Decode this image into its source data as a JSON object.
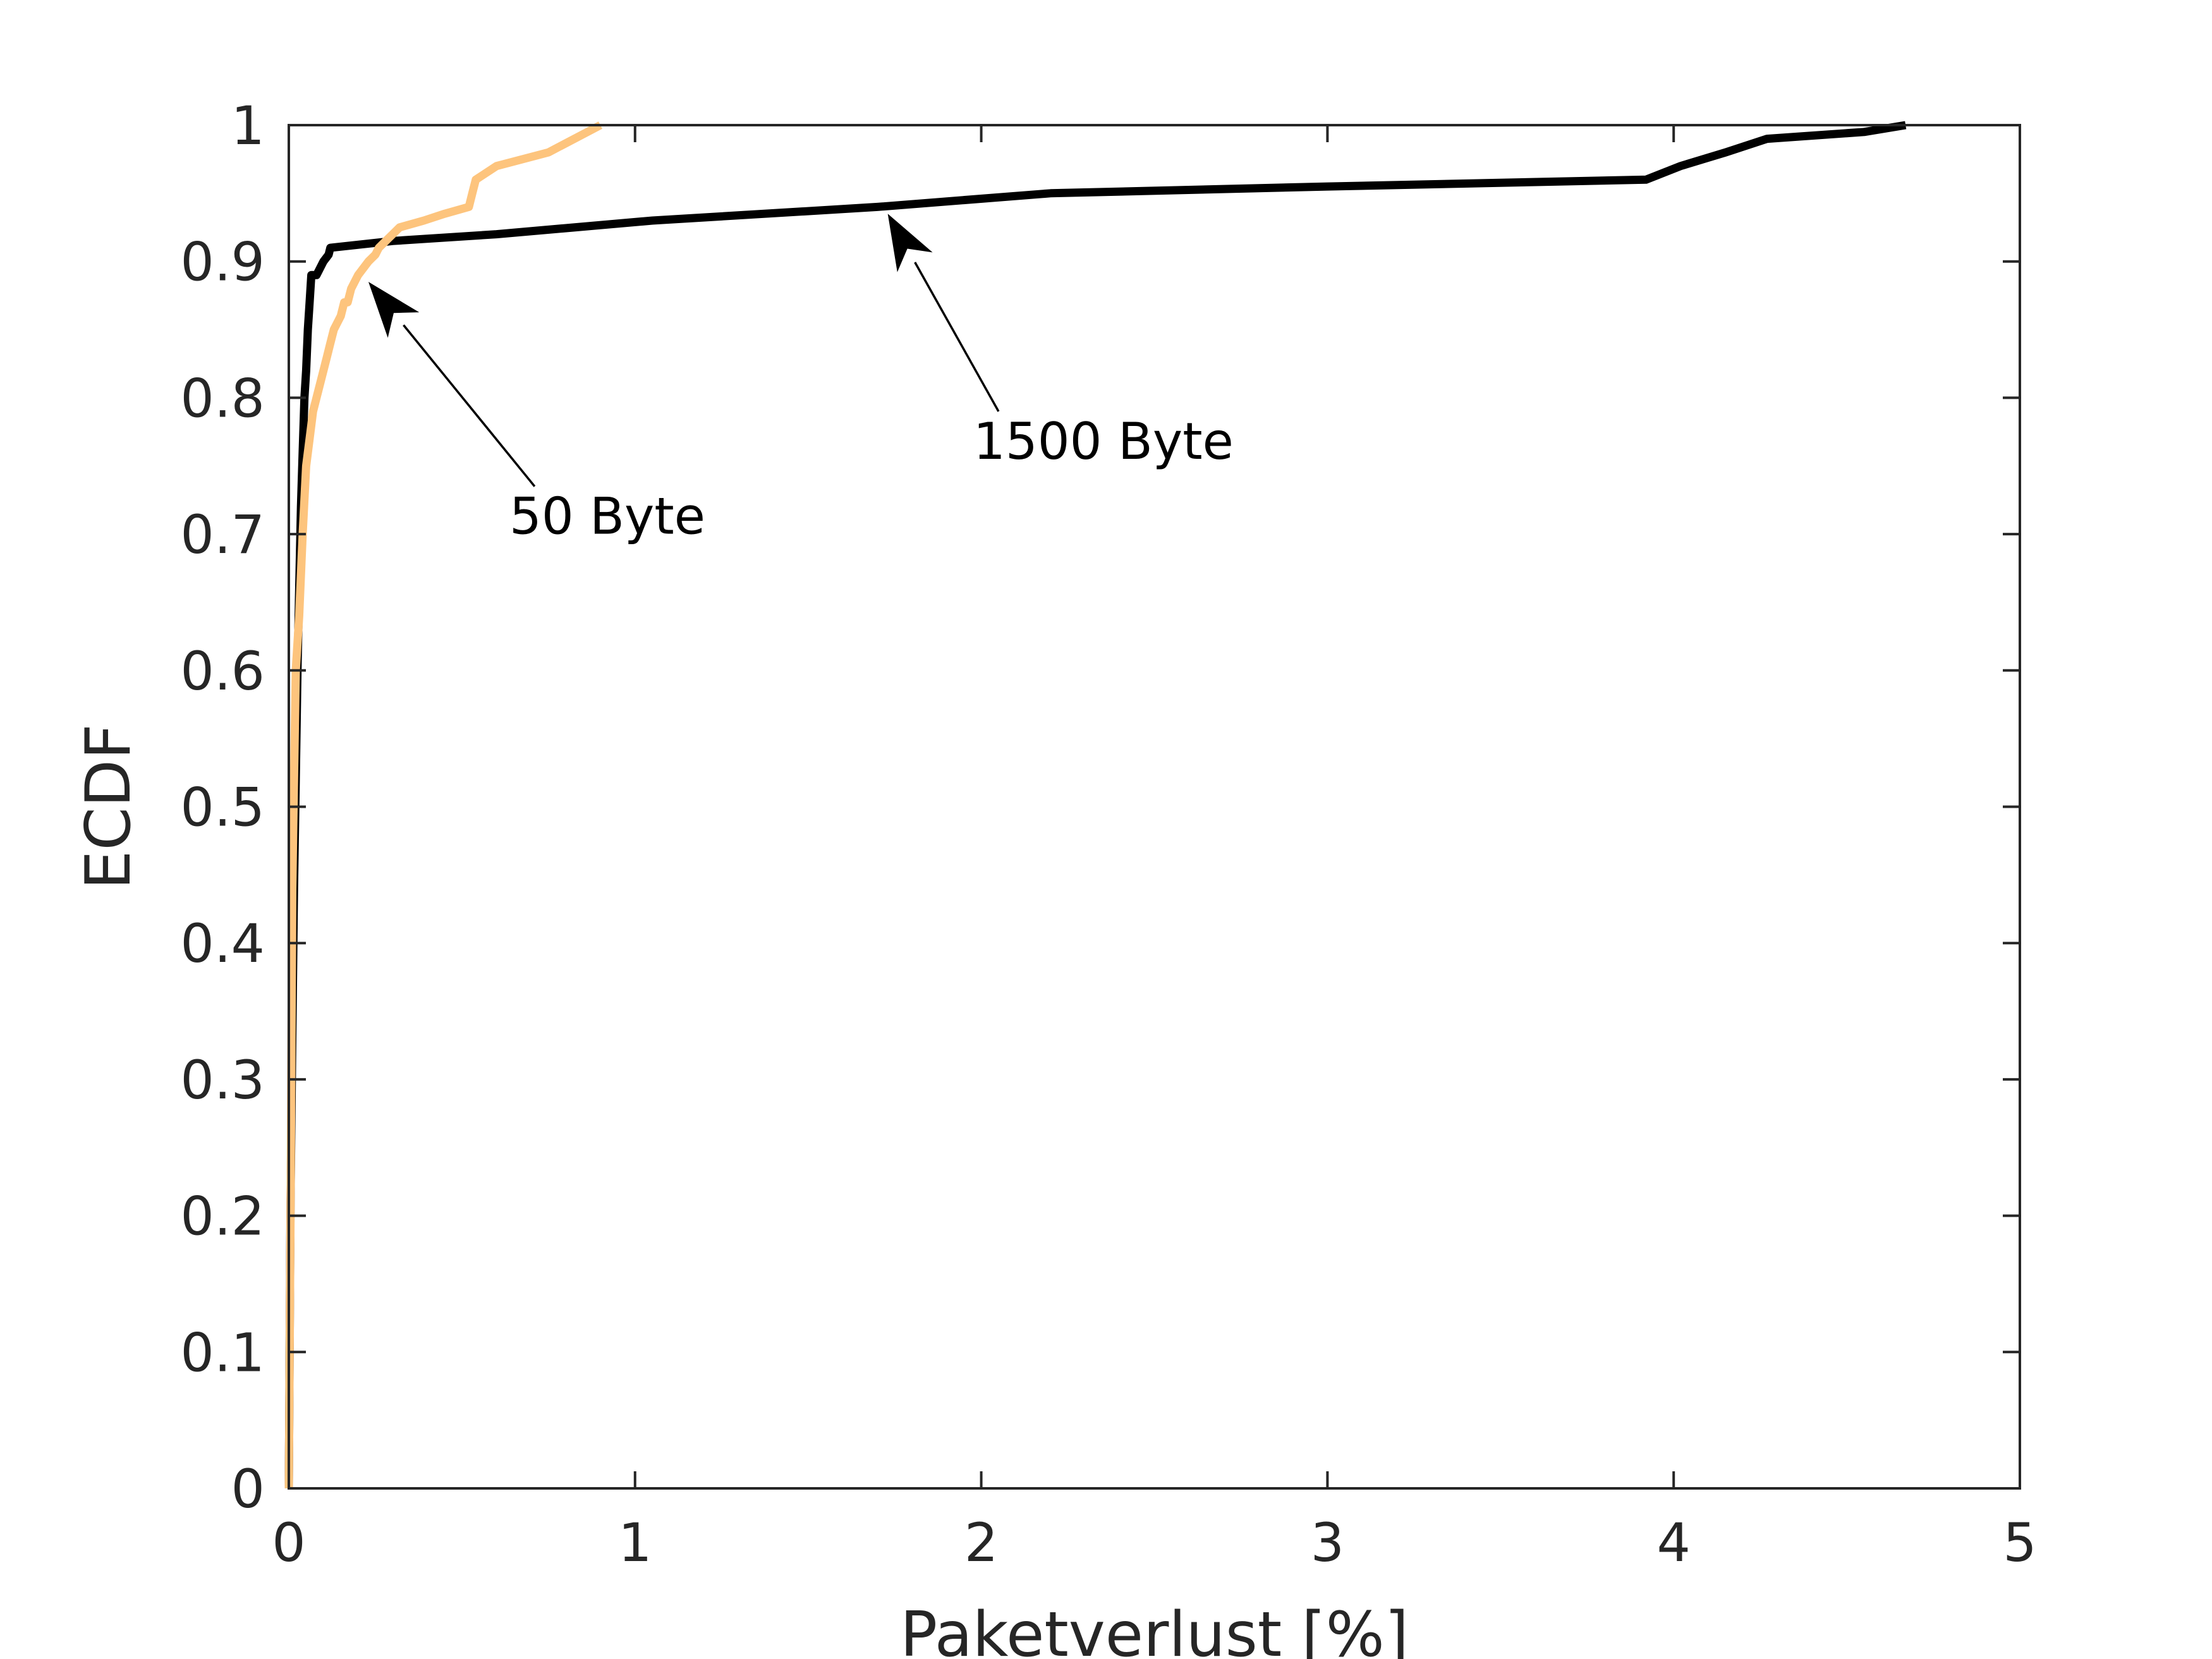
{
  "chart_data": {
    "type": "line",
    "xlabel": "Paketverlust [%]",
    "ylabel": "ECDF",
    "xlim": [
      0,
      5
    ],
    "ylim": [
      0,
      1
    ],
    "xticks": [
      0,
      1,
      2,
      3,
      4,
      5
    ],
    "xtick_labels": [
      "0",
      "1",
      "2",
      "3",
      "4",
      "5"
    ],
    "yticks": [
      0,
      0.1,
      0.2,
      0.3,
      0.4,
      0.5,
      0.6,
      0.7,
      0.8,
      0.9,
      1
    ],
    "ytick_labels": [
      "0",
      "0.1",
      "0.2",
      "0.3",
      "0.4",
      "0.5",
      "0.6",
      "0.7",
      "0.8",
      "0.9",
      "1"
    ],
    "grid": false,
    "series": [
      {
        "color": "#000000",
        "x": [
          0,
          0.005,
          0.01,
          0.015,
          0.02,
          0.025,
          0.03,
          0.035,
          0.04,
          0.045,
          0.05,
          0.055,
          0.06,
          0.065,
          0.07,
          0.08,
          0.1,
          0.115,
          0.12,
          0.3,
          0.6,
          1.05,
          1.7,
          2.2,
          3.0,
          3.92,
          4.02,
          4.15,
          4.27,
          4.55,
          4.67
        ],
        "y": [
          0,
          0.21,
          0.33,
          0.44,
          0.52,
          0.6,
          0.66,
          0.72,
          0.76,
          0.8,
          0.82,
          0.85,
          0.87,
          0.89,
          0.89,
          0.89,
          0.9,
          0.905,
          0.91,
          0.915,
          0.92,
          0.93,
          0.94,
          0.95,
          0.955,
          0.96,
          0.97,
          0.98,
          0.99,
          0.995,
          1.0
        ]
      },
      {
        "color": "#fdc47d",
        "x": [
          0,
          0.005,
          0.01,
          0.015,
          0.02,
          0.03,
          0.04,
          0.05,
          0.06,
          0.07,
          0.08,
          0.1,
          0.11,
          0.12,
          0.13,
          0.15,
          0.16,
          0.17,
          0.18,
          0.2,
          0.23,
          0.25,
          0.26,
          0.28,
          0.3,
          0.32,
          0.39,
          0.45,
          0.52,
          0.53,
          0.54,
          0.6,
          0.75,
          0.9
        ],
        "y": [
          0,
          0.2,
          0.44,
          0.52,
          0.6,
          0.64,
          0.7,
          0.75,
          0.77,
          0.79,
          0.8,
          0.82,
          0.83,
          0.84,
          0.85,
          0.86,
          0.87,
          0.87,
          0.88,
          0.89,
          0.9,
          0.905,
          0.91,
          0.915,
          0.92,
          0.925,
          0.93,
          0.935,
          0.94,
          0.95,
          0.96,
          0.97,
          0.98,
          1.0
        ]
      }
    ],
    "annotations": [
      {
        "text": "1500 Byte",
        "x": 2.05,
        "y": 0.79,
        "arrow_to_x": 1.73,
        "arrow_to_y": 0.935
      },
      {
        "text": "50 Byte",
        "x": 0.71,
        "y": 0.735,
        "arrow_to_x": 0.23,
        "arrow_to_y": 0.885
      }
    ]
  }
}
